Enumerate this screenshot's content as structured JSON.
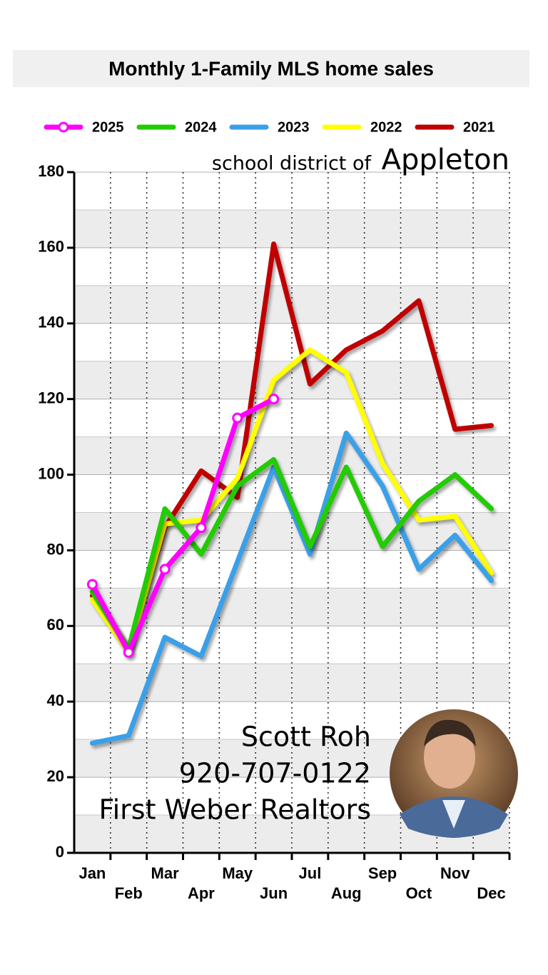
{
  "chart_data": {
    "type": "line",
    "title": "Monthly 1-Family MLS home sales",
    "subtitle": [
      "school district of",
      "Appleton"
    ],
    "categories": [
      "Jan",
      "Feb",
      "Mar",
      "Apr",
      "May",
      "Jun",
      "Jul",
      "Aug",
      "Sep",
      "Oct",
      "Nov",
      "Dec"
    ],
    "series": [
      {
        "name": "2025",
        "color": "#ff00ff",
        "marker": "circle",
        "values": [
          71,
          53,
          75,
          86,
          115,
          120,
          null,
          null,
          null,
          null,
          null,
          null
        ]
      },
      {
        "name": "2024",
        "color": "#22cc00",
        "values": [
          69,
          54,
          91,
          79,
          97,
          104,
          81,
          102,
          81,
          93,
          100,
          91
        ]
      },
      {
        "name": "2023",
        "color": "#3aa0e8",
        "values": [
          29,
          31,
          57,
          52,
          77,
          102,
          79,
          111,
          97,
          75,
          84,
          72
        ]
      },
      {
        "name": "2022",
        "color": "#ffff00",
        "values": [
          67,
          53,
          87,
          88,
          99,
          125,
          133,
          127,
          103,
          88,
          89,
          74
        ]
      },
      {
        "name": "2021",
        "color": "#c00000",
        "values": [
          68,
          54,
          86,
          101,
          94,
          161,
          124,
          133,
          138,
          146,
          112,
          113
        ]
      }
    ],
    "ylim": [
      0,
      180
    ],
    "yticks": [
      0,
      20,
      40,
      60,
      80,
      100,
      120,
      140,
      160,
      180
    ],
    "grid": true,
    "contact": [
      "Scott Roh",
      "920-707-0122",
      "First Weber Realtors"
    ]
  }
}
